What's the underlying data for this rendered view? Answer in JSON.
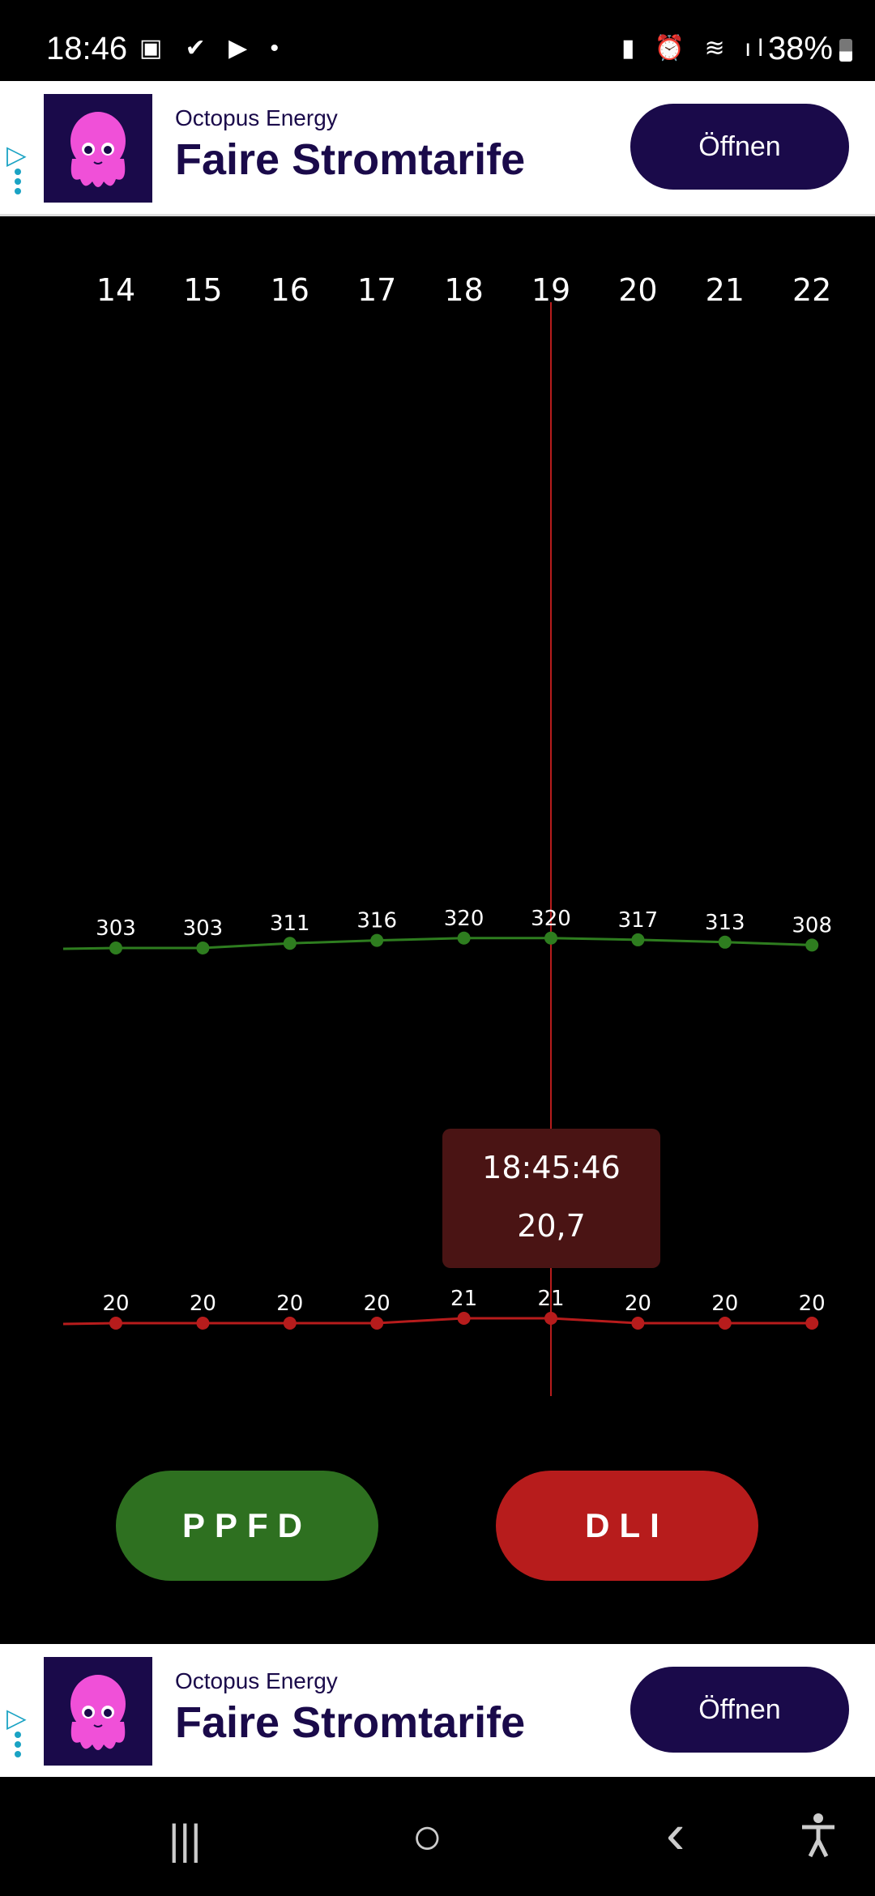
{
  "status_bar": {
    "time": "18:46",
    "left_icons": [
      "gallery-icon",
      "check-icon",
      "youtube-icon",
      "dot-icon"
    ],
    "right_icons": [
      "battery-saver-icon",
      "alarm-icon",
      "wifi-icon",
      "signal-icon"
    ],
    "battery": "38%"
  },
  "ad_top": {
    "brand": "Octopus Energy",
    "headline": "Faire Stromtarife",
    "button": "Öffnen"
  },
  "ad_bottom": {
    "brand": "Octopus Energy",
    "headline": "Faire Stromtarife",
    "button": "Öffnen"
  },
  "chart_data": {
    "type": "line",
    "x": [
      "14",
      "15",
      "16",
      "17",
      "18",
      "19",
      "20",
      "21",
      "22"
    ],
    "series": [
      {
        "name": "PPFD",
        "color": "#2e7d1f",
        "values": [
          303,
          303,
          311,
          316,
          320,
          320,
          317,
          313,
          308
        ]
      },
      {
        "name": "DLI",
        "color": "#b71c1c",
        "values": [
          20,
          20,
          20,
          20,
          21,
          21,
          20,
          20,
          20
        ]
      }
    ],
    "crosshair_x": "19",
    "tooltip": {
      "time": "18:45:46",
      "value": "20,7"
    }
  },
  "buttons": {
    "ppfd": "PPFD",
    "dli": "DLI",
    "ppfd_color": "#2e7020",
    "dli_color": "#b71c1c"
  },
  "nav": {
    "recents": "|||",
    "home": "○",
    "back": "‹",
    "accessibility": "accessibility-icon"
  }
}
